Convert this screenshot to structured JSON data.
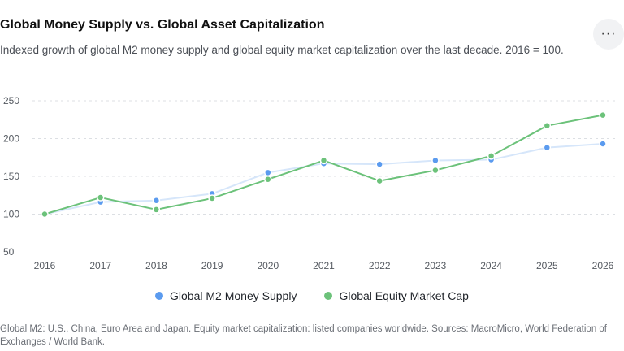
{
  "header": {
    "title": "Global Money Supply vs. Global Asset Capitalization",
    "subtitle": "Indexed growth of global M2 money supply and global equity market capitalization over the last decade. 2016 = 100.",
    "more_label": "···",
    "more_icon": "ellipsis-icon"
  },
  "chart_data": {
    "type": "line",
    "x": [
      "2016",
      "2017",
      "2018",
      "2019",
      "2020",
      "2021",
      "2022",
      "2023",
      "2024",
      "2025",
      "2026"
    ],
    "series": [
      {
        "name": "Global M2 Money Supply",
        "values": [
          100,
          116,
          118,
          127,
          155,
          167,
          166,
          171,
          172,
          188,
          193
        ],
        "color": "#5b9bef",
        "line_color": "#d6e6fa"
      },
      {
        "name": "Global Equity Market Cap",
        "values": [
          100,
          122,
          106,
          121,
          146,
          171,
          144,
          158,
          177,
          217,
          231
        ],
        "color": "#6cc27a",
        "line_color": "#6cc27a"
      }
    ],
    "yticks": [
      50,
      100,
      150,
      200,
      250
    ],
    "ylim": [
      50,
      250
    ],
    "grid": true,
    "legend_position": "bottom"
  },
  "footnote": "Global M2: U.S., China, Euro Area and Japan. Equity market capitalization: listed companies worldwide. Sources: MacroMicro, World Federation of Exchanges / World Bank."
}
